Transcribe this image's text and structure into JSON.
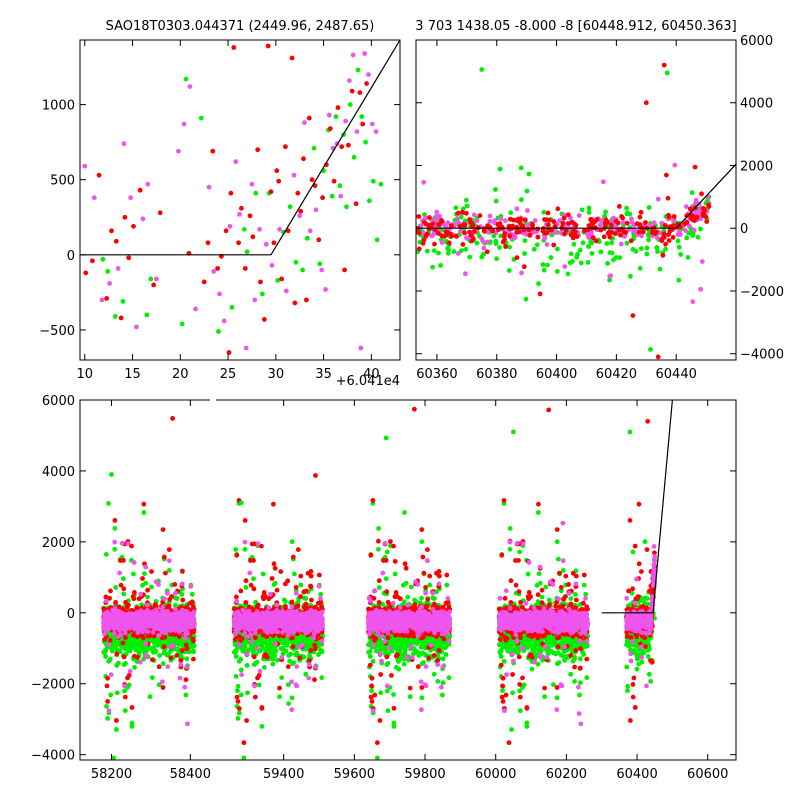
{
  "colors": {
    "red": "#ff0000",
    "green": "#00ee00",
    "magenta": "#ee55ee",
    "line": "#000000"
  },
  "chart_data": [
    {
      "type": "scatter",
      "title": "SAO18T0303.044371 (2449.96, 2487.65)",
      "x_offset_label": "+6.041e4",
      "xlim": [
        9.5,
        43
      ],
      "ylim": [
        -700,
        1430
      ],
      "x_ticks": [
        10,
        15,
        20,
        25,
        30,
        35,
        40
      ],
      "y_ticks": [
        -500,
        0,
        500,
        1000
      ],
      "tick_side": "left",
      "model_line": [
        [
          9.5,
          0
        ],
        [
          29.5,
          0
        ],
        [
          43,
          1430
        ]
      ],
      "points": {
        "red": [
          [
            10.1,
            -120
          ],
          [
            10.8,
            -40
          ],
          [
            11.5,
            530
          ],
          [
            12.3,
            -290
          ],
          [
            12.8,
            160
          ],
          [
            13.3,
            90
          ],
          [
            13.8,
            -420
          ],
          [
            14.2,
            250
          ],
          [
            14.6,
            -20
          ],
          [
            15.1,
            190
          ],
          [
            15.8,
            430
          ],
          [
            17.2,
            -200
          ],
          [
            17.9,
            280
          ],
          [
            20.9,
            10
          ],
          [
            22.5,
            -180
          ],
          [
            22.9,
            80
          ],
          [
            23.4,
            690
          ],
          [
            23.9,
            -90
          ],
          [
            24.3,
            -10
          ],
          [
            24.8,
            160
          ],
          [
            25.1,
            -650
          ],
          [
            25.3,
            410
          ],
          [
            25.6,
            1380
          ],
          [
            26.1,
            80
          ],
          [
            26.4,
            310
          ],
          [
            26.8,
            -90
          ],
          [
            27.3,
            260
          ],
          [
            27.6,
            120
          ],
          [
            28.1,
            700
          ],
          [
            28.4,
            -180
          ],
          [
            28.8,
            -430
          ],
          [
            29.2,
            1390
          ],
          [
            29.5,
            420
          ],
          [
            29.8,
            80
          ],
          [
            30.1,
            560
          ],
          [
            30.3,
            490
          ],
          [
            30.6,
            -160
          ],
          [
            31.0,
            720
          ],
          [
            31.3,
            160
          ],
          [
            31.7,
            1310
          ],
          [
            32.0,
            -320
          ],
          [
            32.3,
            410
          ],
          [
            32.6,
            290
          ],
          [
            32.9,
            640
          ],
          [
            33.2,
            -300
          ],
          [
            33.5,
            910
          ],
          [
            33.8,
            500
          ],
          [
            34.1,
            460
          ],
          [
            34.5,
            100
          ],
          [
            34.9,
            380
          ],
          [
            35.3,
            600
          ],
          [
            35.7,
            840
          ],
          [
            36.1,
            490
          ],
          [
            36.5,
            980
          ],
          [
            36.9,
            720
          ],
          [
            37.2,
            -100
          ],
          [
            37.6,
            730
          ],
          [
            38.0,
            1090
          ],
          [
            38.4,
            340
          ],
          [
            38.8,
            1080
          ],
          [
            39.1,
            870
          ],
          [
            39.5,
            1140
          ]
        ],
        "green": [
          [
            11.9,
            -30
          ],
          [
            12.4,
            -110
          ],
          [
            13.2,
            -410
          ],
          [
            14.0,
            -310
          ],
          [
            16.5,
            -400
          ],
          [
            16.9,
            -160
          ],
          [
            20.2,
            -460
          ],
          [
            20.6,
            1170
          ],
          [
            22.2,
            910
          ],
          [
            24.0,
            -510
          ],
          [
            25.4,
            -350
          ],
          [
            26.7,
            170
          ],
          [
            27.0,
            20
          ],
          [
            27.9,
            410
          ],
          [
            28.6,
            -260
          ],
          [
            29.3,
            410
          ],
          [
            30.2,
            -170
          ],
          [
            30.8,
            150
          ],
          [
            31.5,
            320
          ],
          [
            32.1,
            -50
          ],
          [
            32.8,
            -100
          ],
          [
            33.3,
            110
          ],
          [
            34.0,
            710
          ],
          [
            34.6,
            -60
          ],
          [
            35.0,
            560
          ],
          [
            35.5,
            830
          ],
          [
            35.9,
            390
          ],
          [
            36.3,
            920
          ],
          [
            36.7,
            460
          ],
          [
            37.1,
            800
          ],
          [
            37.4,
            320
          ],
          [
            37.8,
            1000
          ],
          [
            38.2,
            650
          ],
          [
            38.6,
            1230
          ],
          [
            39.0,
            920
          ],
          [
            39.4,
            750
          ],
          [
            39.8,
            360
          ],
          [
            40.2,
            490
          ],
          [
            40.6,
            100
          ],
          [
            41.0,
            470
          ]
        ],
        "magenta": [
          [
            10.0,
            590
          ],
          [
            11.0,
            380
          ],
          [
            11.8,
            -300
          ],
          [
            12.6,
            -190
          ],
          [
            13.5,
            -90
          ],
          [
            14.1,
            740
          ],
          [
            14.8,
            380
          ],
          [
            15.4,
            -480
          ],
          [
            16.1,
            240
          ],
          [
            16.6,
            470
          ],
          [
            17.5,
            -160
          ],
          [
            19.8,
            690
          ],
          [
            20.4,
            870
          ],
          [
            21.0,
            1120
          ],
          [
            21.6,
            -360
          ],
          [
            23.0,
            450
          ],
          [
            23.5,
            -110
          ],
          [
            24.1,
            -260
          ],
          [
            24.6,
            -440
          ],
          [
            25.2,
            190
          ],
          [
            25.8,
            620
          ],
          [
            26.2,
            270
          ],
          [
            26.9,
            -620
          ],
          [
            27.5,
            470
          ],
          [
            27.8,
            -300
          ],
          [
            28.3,
            170
          ],
          [
            29.0,
            70
          ],
          [
            29.6,
            -70
          ],
          [
            30.4,
            170
          ],
          [
            31.1,
            -240
          ],
          [
            31.9,
            530
          ],
          [
            32.5,
            260
          ],
          [
            33.0,
            880
          ],
          [
            33.6,
            160
          ],
          [
            34.2,
            300
          ],
          [
            34.8,
            -100
          ],
          [
            35.2,
            -230
          ],
          [
            35.6,
            930
          ],
          [
            36.0,
            710
          ],
          [
            36.4,
            740
          ],
          [
            36.8,
            390
          ],
          [
            37.3,
            890
          ],
          [
            37.7,
            1160
          ],
          [
            38.1,
            1330
          ],
          [
            38.5,
            820
          ],
          [
            38.9,
            -620
          ],
          [
            39.3,
            1340
          ],
          [
            39.7,
            1200
          ],
          [
            40.1,
            870
          ],
          [
            40.5,
            820
          ]
        ]
      }
    },
    {
      "type": "scatter",
      "title": "3 703 1438.05 -8.000 -8 [60448.912, 60450.363]",
      "xlim": [
        60353,
        60460
      ],
      "ylim": [
        -4200,
        6000
      ],
      "x_ticks": [
        60360,
        60380,
        60400,
        60420,
        60440
      ],
      "y_ticks": [
        -4000,
        -2000,
        0,
        2000,
        4000,
        6000
      ],
      "tick_side": "right",
      "model_line": [
        [
          60353,
          0
        ],
        [
          60440,
          0
        ],
        [
          60460,
          2040
        ]
      ]
    },
    {
      "type": "scatter",
      "xlim": [
        58120,
        60680
      ],
      "ylim": [
        -4150,
        6000
      ],
      "x_ticks": [
        58200,
        58400,
        59400,
        59600,
        59800,
        60000,
        60200,
        60400,
        60600
      ],
      "y_ticks": [
        -4000,
        -2000,
        0,
        2000,
        4000,
        6000
      ],
      "tick_side": "left",
      "model_line": [
        [
          60300,
          0
        ],
        [
          60445,
          0
        ],
        [
          60500,
          6000
        ]
      ],
      "segments": [
        {
          "x0": 58180,
          "x1": 58410,
          "red": [
            58355,
            5480
          ],
          "green": [
            58200,
            3900
          ]
        },
        {
          "x0": 59260,
          "x1": 59510,
          "red": [
            59490,
            3870
          ],
          "green": [
            59280,
            3100
          ]
        },
        {
          "x0": 59640,
          "x1": 59870,
          "red": [
            59770,
            5740
          ],
          "green": [
            59690,
            4930
          ]
        },
        {
          "x0": 60010,
          "x1": 60260,
          "red": [
            60150,
            5720
          ],
          "green": [
            60050,
            5100
          ]
        },
        {
          "x0": 60370,
          "x1": 60450,
          "red": [
            60430,
            5400
          ],
          "green": [
            60380,
            5100
          ]
        }
      ]
    }
  ]
}
